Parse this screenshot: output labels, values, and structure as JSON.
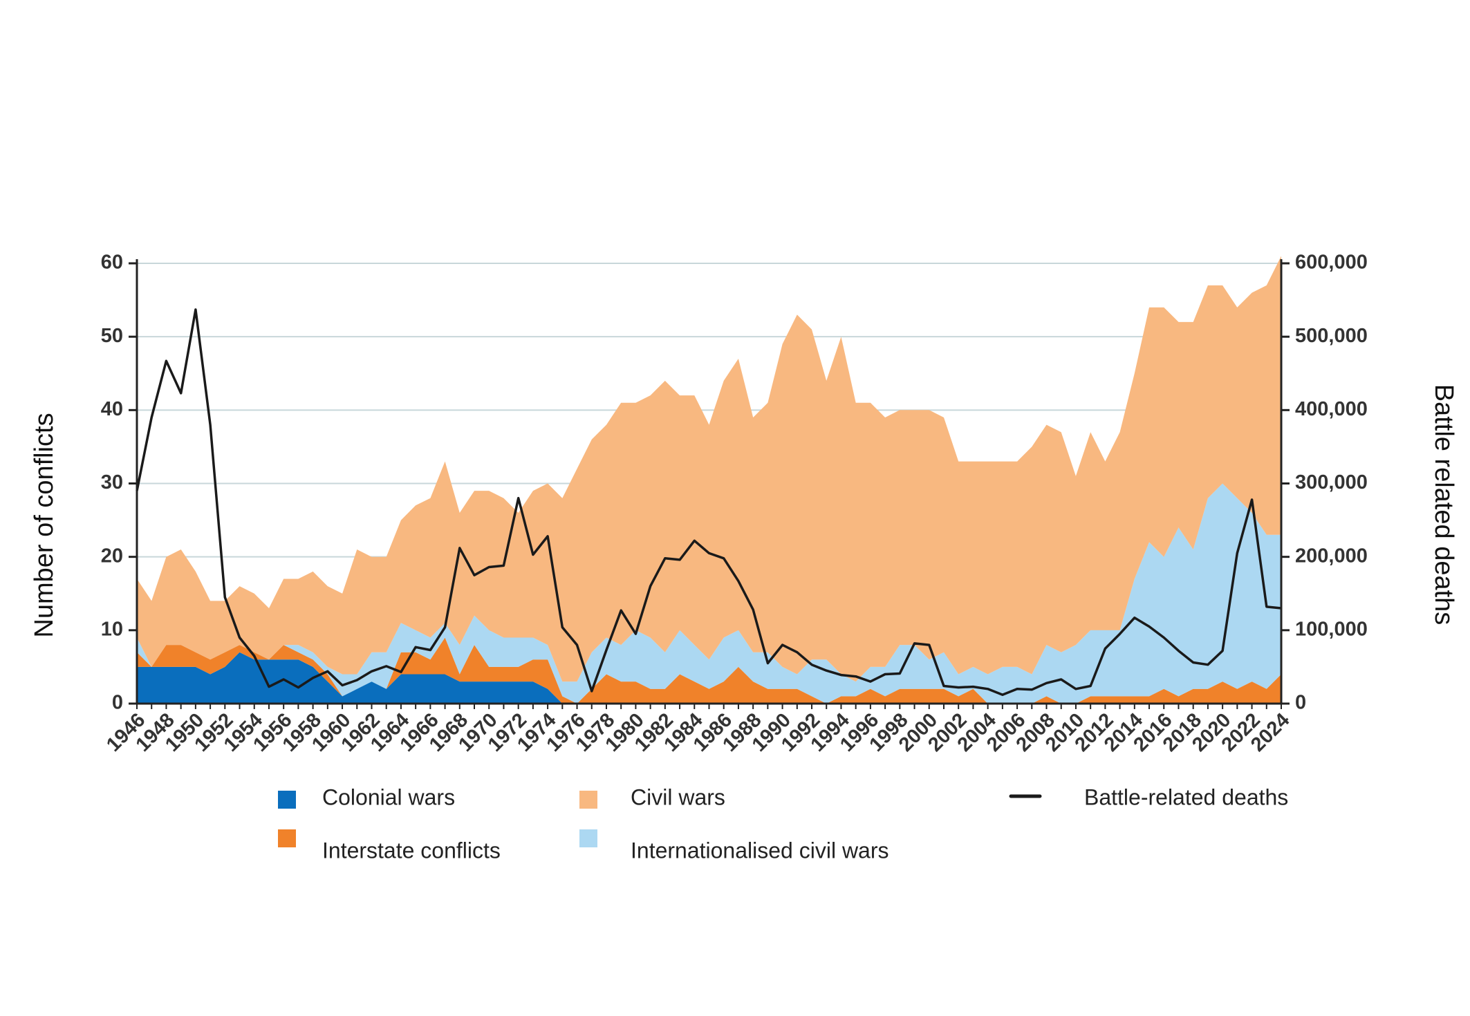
{
  "chart_data": {
    "type": "area",
    "x": [
      1946,
      1947,
      1948,
      1949,
      1950,
      1951,
      1952,
      1953,
      1954,
      1955,
      1956,
      1957,
      1958,
      1959,
      1960,
      1961,
      1962,
      1963,
      1964,
      1965,
      1966,
      1967,
      1968,
      1969,
      1970,
      1971,
      1972,
      1973,
      1974,
      1975,
      1976,
      1977,
      1978,
      1979,
      1980,
      1981,
      1982,
      1983,
      1984,
      1985,
      1986,
      1987,
      1988,
      1989,
      1990,
      1991,
      1992,
      1993,
      1994,
      1995,
      1996,
      1997,
      1998,
      1999,
      2000,
      2001,
      2002,
      2003,
      2004,
      2005,
      2006,
      2007,
      2008,
      2009,
      2010,
      2011,
      2012,
      2013,
      2014,
      2015,
      2016,
      2017,
      2018,
      2019,
      2020,
      2021,
      2022,
      2023,
      2024
    ],
    "xticks": [
      "1946",
      "1948",
      "1950",
      "1952",
      "1954",
      "1956",
      "1958",
      "1960",
      "1962",
      "1964",
      "1966",
      "1968",
      "1970",
      "1972",
      "1974",
      "1976",
      "1978",
      "1980",
      "1982",
      "1984",
      "1986",
      "1988",
      "1990",
      "1992",
      "1994",
      "1996",
      "1998",
      "2000",
      "2002",
      "2004",
      "2006",
      "2008",
      "2010",
      "2012",
      "2014",
      "2016",
      "2018",
      "2020",
      "2022",
      "2024"
    ],
    "ylabel": "Number of conflicts",
    "y2label": "Battle related deaths",
    "ylim": [
      0,
      60
    ],
    "y2lim": [
      0,
      600000
    ],
    "yticks": [
      "0",
      "10",
      "20",
      "30",
      "40",
      "50",
      "60"
    ],
    "y2ticks": [
      "0",
      "100,000",
      "200,000",
      "300,000",
      "400,000",
      "500,000",
      "600,000"
    ],
    "grid": true,
    "legend_position": "bottom",
    "stacking": "stacked",
    "series": [
      {
        "name": "Colonial wars",
        "color": "#0a6ebd",
        "values": [
          5,
          5,
          5,
          5,
          5,
          4,
          5,
          7,
          6,
          6,
          6,
          6,
          5,
          3,
          1,
          2,
          3,
          2,
          4,
          4,
          4,
          4,
          3,
          3,
          3,
          3,
          3,
          3,
          2,
          0,
          0,
          0,
          0,
          0,
          0,
          0,
          0,
          0,
          0,
          0,
          0,
          0,
          0,
          0,
          0,
          0,
          0,
          0,
          0,
          0,
          0,
          0,
          0,
          0,
          0,
          0,
          0,
          0,
          0,
          0,
          0,
          0,
          0,
          0,
          0,
          0,
          0,
          0,
          0,
          0,
          0,
          0,
          0,
          0,
          0,
          0,
          0,
          0,
          0
        ]
      },
      {
        "name": "Interstate conflicts",
        "color": "#f0822a",
        "values": [
          2,
          0,
          3,
          3,
          2,
          2,
          2,
          1,
          1,
          0,
          2,
          1,
          1,
          1,
          0,
          0,
          0,
          0,
          3,
          3,
          2,
          5,
          1,
          5,
          2,
          2,
          2,
          3,
          4,
          1,
          0,
          2,
          4,
          3,
          3,
          2,
          2,
          4,
          3,
          2,
          3,
          5,
          3,
          2,
          2,
          2,
          1,
          0,
          1,
          1,
          2,
          1,
          2,
          2,
          2,
          2,
          1,
          2,
          0,
          0,
          0,
          0,
          1,
          0,
          0,
          1,
          1,
          1,
          1,
          1,
          2,
          1,
          2,
          2,
          3,
          2,
          3,
          2,
          4
        ]
      },
      {
        "name": "Internationalised civil wars",
        "color": "#acd8f2",
        "values": [
          2,
          0,
          0,
          0,
          0,
          0,
          0,
          0,
          0,
          0,
          0,
          1,
          1,
          1,
          3,
          2,
          4,
          5,
          4,
          3,
          3,
          2,
          4,
          4,
          5,
          4,
          4,
          3,
          2,
          2,
          3,
          5,
          5,
          5,
          7,
          7,
          5,
          6,
          5,
          4,
          6,
          5,
          4,
          5,
          3,
          2,
          5,
          6,
          3,
          2,
          3,
          4,
          6,
          6,
          4,
          5,
          3,
          3,
          4,
          5,
          5,
          4,
          7,
          7,
          8,
          9,
          9,
          9,
          16,
          21,
          18,
          23,
          19,
          26,
          27,
          26,
          23,
          21,
          19
        ]
      },
      {
        "name": "Civil wars",
        "color": "#f8b880",
        "values": [
          8,
          9,
          12,
          13,
          11,
          8,
          7,
          8,
          8,
          7,
          9,
          9,
          11,
          11,
          11,
          17,
          13,
          13,
          14,
          17,
          19,
          22,
          18,
          17,
          19,
          19,
          17,
          20,
          22,
          25,
          29,
          29,
          29,
          33,
          31,
          33,
          37,
          32,
          34,
          32,
          35,
          37,
          32,
          34,
          44,
          49,
          45,
          38,
          46,
          38,
          36,
          34,
          32,
          32,
          34,
          32,
          29,
          28,
          29,
          28,
          28,
          31,
          30,
          30,
          23,
          27,
          23,
          27,
          28,
          32,
          34,
          28,
          31,
          29,
          27,
          26,
          30,
          34,
          38
        ]
      },
      {
        "name": "Battle-related deaths",
        "color": "#1a1a1a",
        "axis": "right",
        "kind": "line",
        "values": [
          290000,
          390000,
          467000,
          423000,
          537000,
          380000,
          145000,
          90000,
          65000,
          23000,
          33000,
          22000,
          35000,
          44000,
          25000,
          32000,
          44000,
          51000,
          43000,
          77000,
          73000,
          104000,
          212000,
          175000,
          186000,
          188000,
          280000,
          203000,
          228000,
          104000,
          80000,
          17000,
          73000,
          127000,
          95000,
          160000,
          198000,
          196000,
          222000,
          205000,
          198000,
          167000,
          128000,
          55000,
          80000,
          70000,
          53000,
          45000,
          39000,
          37000,
          30000,
          40000,
          41000,
          82000,
          80000,
          24000,
          22000,
          23000,
          20000,
          12000,
          20000,
          19000,
          28000,
          33000,
          20000,
          24000,
          75000,
          95000,
          117000,
          105000,
          90000,
          72000,
          56000,
          53000,
          72000,
          205000,
          278000,
          132000,
          130000
        ]
      }
    ]
  },
  "legend": {
    "items": [
      {
        "label": "Colonial wars",
        "color": "#0a6ebd"
      },
      {
        "label": "Civil wars",
        "color": "#f8b880"
      },
      {
        "label": "Battle-related deaths",
        "color": "#1a1a1a"
      },
      {
        "label": "Interstate conflicts",
        "color": "#f0822a"
      },
      {
        "label": "Internationalised civil wars",
        "color": "#acd8f2"
      }
    ]
  },
  "colors": {
    "grid": "#c8d7da",
    "axis": "#222222"
  }
}
